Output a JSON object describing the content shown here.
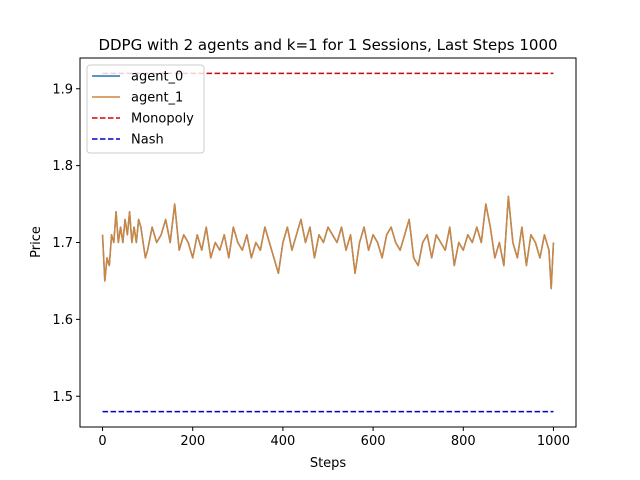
{
  "chart_data": {
    "type": "line",
    "title": "DDPG with 2 agents and k=1 for 1 Sessions, Last Steps 1000",
    "xlabel": "Steps",
    "ylabel": "Price",
    "xlim": [
      -50,
      1050
    ],
    "ylim": [
      1.46,
      1.94
    ],
    "xticks": [
      0,
      200,
      400,
      600,
      800,
      1000
    ],
    "yticks": [
      1.5,
      1.6,
      1.7,
      1.8,
      1.9
    ],
    "xtick_labels": [
      "0",
      "200",
      "400",
      "600",
      "800",
      "1000"
    ],
    "ytick_labels": [
      "1.5",
      "1.6",
      "1.7",
      "1.8",
      "1.9"
    ],
    "grid": false,
    "legend_position": "top-left",
    "series": [
      {
        "name": "agent_0",
        "style": "solid",
        "color": "#1f77b4",
        "x": [
          0,
          5,
          10,
          15,
          20,
          25,
          30,
          35,
          40,
          45,
          50,
          55,
          60,
          65,
          70,
          75,
          80,
          85,
          90,
          95,
          100,
          110,
          120,
          130,
          140,
          150,
          160,
          165,
          170,
          180,
          190,
          200,
          210,
          220,
          230,
          240,
          250,
          260,
          270,
          280,
          290,
          300,
          310,
          320,
          330,
          340,
          350,
          360,
          370,
          380,
          390,
          400,
          410,
          420,
          430,
          440,
          450,
          460,
          470,
          480,
          490,
          500,
          510,
          520,
          530,
          540,
          550,
          560,
          570,
          580,
          590,
          600,
          610,
          620,
          630,
          640,
          650,
          660,
          670,
          680,
          690,
          700,
          710,
          720,
          730,
          740,
          750,
          760,
          770,
          780,
          790,
          800,
          810,
          820,
          830,
          840,
          850,
          860,
          870,
          880,
          890,
          900,
          910,
          920,
          930,
          940,
          950,
          960,
          970,
          980,
          990,
          995,
          1000
        ],
        "y": [
          1.71,
          1.65,
          1.68,
          1.67,
          1.71,
          1.7,
          1.74,
          1.7,
          1.72,
          1.7,
          1.73,
          1.71,
          1.74,
          1.7,
          1.72,
          1.7,
          1.73,
          1.72,
          1.7,
          1.68,
          1.69,
          1.72,
          1.7,
          1.71,
          1.73,
          1.7,
          1.75,
          1.72,
          1.69,
          1.71,
          1.7,
          1.68,
          1.71,
          1.69,
          1.72,
          1.68,
          1.7,
          1.69,
          1.71,
          1.68,
          1.72,
          1.7,
          1.69,
          1.71,
          1.68,
          1.7,
          1.69,
          1.72,
          1.7,
          1.68,
          1.66,
          1.7,
          1.72,
          1.69,
          1.71,
          1.73,
          1.7,
          1.72,
          1.68,
          1.71,
          1.7,
          1.72,
          1.71,
          1.7,
          1.72,
          1.69,
          1.71,
          1.66,
          1.7,
          1.72,
          1.69,
          1.71,
          1.7,
          1.68,
          1.71,
          1.72,
          1.7,
          1.69,
          1.71,
          1.73,
          1.68,
          1.67,
          1.7,
          1.71,
          1.68,
          1.71,
          1.7,
          1.69,
          1.72,
          1.67,
          1.7,
          1.69,
          1.71,
          1.7,
          1.72,
          1.7,
          1.75,
          1.72,
          1.68,
          1.7,
          1.67,
          1.76,
          1.7,
          1.68,
          1.72,
          1.67,
          1.71,
          1.7,
          1.68,
          1.71,
          1.69,
          1.64,
          1.7
        ]
      },
      {
        "name": "agent_1",
        "style": "solid",
        "color": "#cd853f",
        "x": [
          0,
          5,
          10,
          15,
          20,
          25,
          30,
          35,
          40,
          45,
          50,
          55,
          60,
          65,
          70,
          75,
          80,
          85,
          90,
          95,
          100,
          110,
          120,
          130,
          140,
          150,
          160,
          165,
          170,
          180,
          190,
          200,
          210,
          220,
          230,
          240,
          250,
          260,
          270,
          280,
          290,
          300,
          310,
          320,
          330,
          340,
          350,
          360,
          370,
          380,
          390,
          400,
          410,
          420,
          430,
          440,
          450,
          460,
          470,
          480,
          490,
          500,
          510,
          520,
          530,
          540,
          550,
          560,
          570,
          580,
          590,
          600,
          610,
          620,
          630,
          640,
          650,
          660,
          670,
          680,
          690,
          700,
          710,
          720,
          730,
          740,
          750,
          760,
          770,
          780,
          790,
          800,
          810,
          820,
          830,
          840,
          850,
          860,
          870,
          880,
          890,
          900,
          910,
          920,
          930,
          940,
          950,
          960,
          970,
          980,
          990,
          995,
          1000
        ],
        "y": [
          1.71,
          1.65,
          1.68,
          1.67,
          1.71,
          1.7,
          1.74,
          1.7,
          1.72,
          1.7,
          1.73,
          1.71,
          1.74,
          1.7,
          1.72,
          1.7,
          1.73,
          1.72,
          1.7,
          1.68,
          1.69,
          1.72,
          1.7,
          1.71,
          1.73,
          1.7,
          1.75,
          1.72,
          1.69,
          1.71,
          1.7,
          1.68,
          1.71,
          1.69,
          1.72,
          1.68,
          1.7,
          1.69,
          1.71,
          1.68,
          1.72,
          1.7,
          1.69,
          1.71,
          1.68,
          1.7,
          1.69,
          1.72,
          1.7,
          1.68,
          1.66,
          1.7,
          1.72,
          1.69,
          1.71,
          1.73,
          1.7,
          1.72,
          1.68,
          1.71,
          1.7,
          1.72,
          1.71,
          1.7,
          1.72,
          1.69,
          1.71,
          1.66,
          1.7,
          1.72,
          1.69,
          1.71,
          1.7,
          1.68,
          1.71,
          1.72,
          1.7,
          1.69,
          1.71,
          1.73,
          1.68,
          1.67,
          1.7,
          1.71,
          1.68,
          1.71,
          1.7,
          1.69,
          1.72,
          1.67,
          1.7,
          1.69,
          1.71,
          1.7,
          1.72,
          1.7,
          1.75,
          1.72,
          1.68,
          1.7,
          1.67,
          1.76,
          1.7,
          1.68,
          1.72,
          1.67,
          1.71,
          1.7,
          1.68,
          1.71,
          1.69,
          1.64,
          1.7
        ]
      },
      {
        "name": "Monopoly",
        "style": "dashed",
        "color": "#dd0000",
        "x": [
          0,
          1000
        ],
        "y": [
          1.92,
          1.92
        ]
      },
      {
        "name": "Nash",
        "style": "dashed",
        "color": "#0000cc",
        "x": [
          0,
          1000
        ],
        "y": [
          1.48,
          1.48
        ]
      }
    ]
  }
}
